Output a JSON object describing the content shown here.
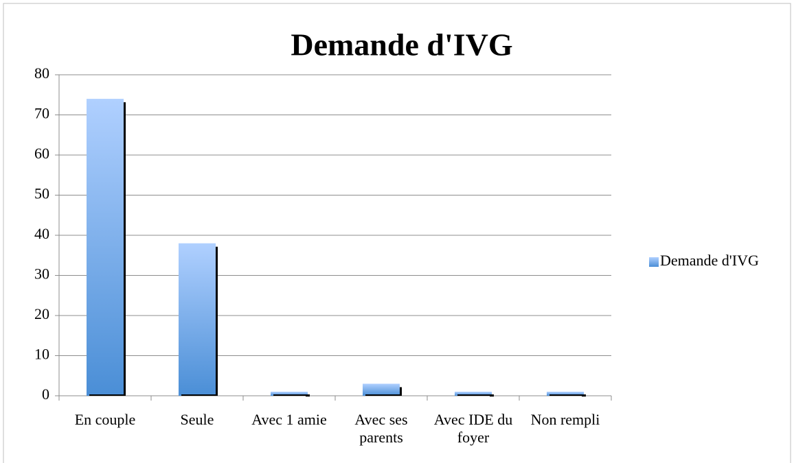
{
  "chart_data": {
    "type": "bar",
    "title": "Demande d'IVG",
    "categories": [
      "En couple",
      "Seule",
      "Avec 1 amie",
      "Avec ses parents",
      "Avec IDE du foyer",
      "Non rempli"
    ],
    "series": [
      {
        "name": "Demande d'IVG",
        "color": "#5b9bd5",
        "values": [
          74,
          38,
          1,
          3,
          1,
          1
        ]
      }
    ],
    "ylim": [
      0,
      80
    ],
    "yticks": [
      0,
      10,
      20,
      30,
      40,
      50,
      60,
      70,
      80
    ],
    "grid": true,
    "legend": "right"
  }
}
